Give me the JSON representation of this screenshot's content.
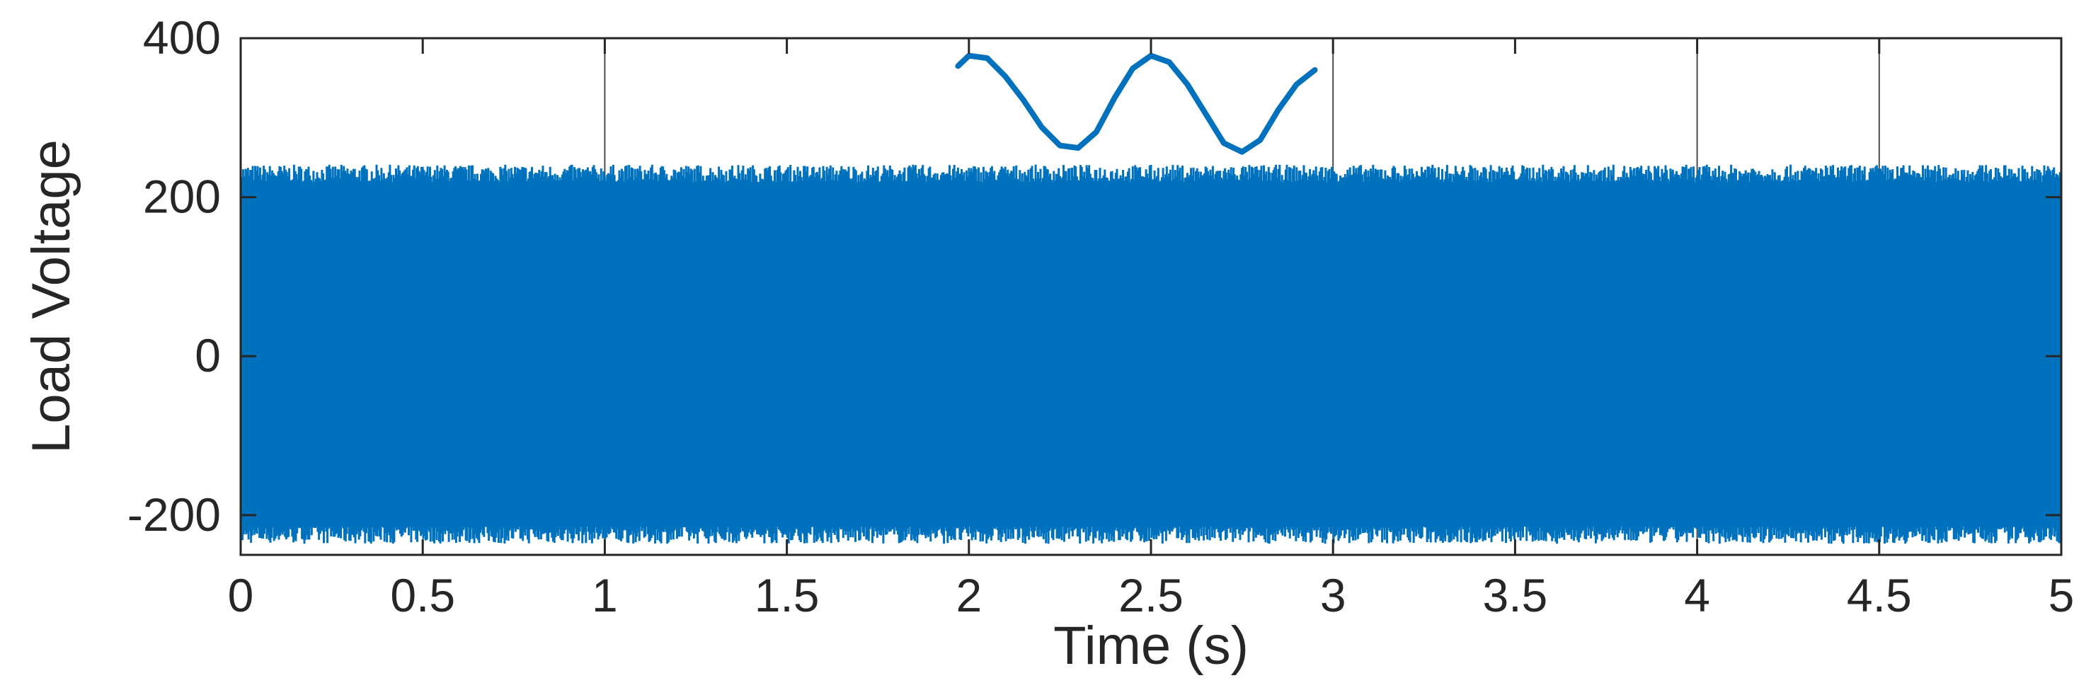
{
  "chart_data": {
    "type": "line",
    "title": "",
    "xlabel": "Time (s)",
    "ylabel": "Load Voltage",
    "xlim": [
      0,
      5
    ],
    "ylim": [
      -250,
      400
    ],
    "xticks": [
      0,
      0.5,
      1,
      1.5,
      2,
      2.5,
      3,
      3.5,
      4,
      4.5,
      5
    ],
    "xtick_labels": [
      "0",
      "0.5",
      "1",
      "1.5",
      "2",
      "2.5",
      "3",
      "3.5",
      "4",
      "4.5",
      "5"
    ],
    "yticks": [
      -200,
      0,
      200,
      400
    ],
    "ytick_labels": [
      "-200",
      "0",
      "200",
      "400"
    ],
    "grid": false,
    "vertical_reference_lines": [
      1,
      3,
      4,
      4.5
    ],
    "series": [
      {
        "color": "#0072BD",
        "description": "dense AC load voltage oscillation",
        "approx_peak": 230,
        "approx_trough": -225
      },
      {
        "color": "#0072BD",
        "description": "inset trace",
        "x": [
          1.97,
          2.0,
          2.05,
          2.1,
          2.15,
          2.2,
          2.25,
          2.3,
          2.35,
          2.4,
          2.45,
          2.5,
          2.55,
          2.6,
          2.65,
          2.7,
          2.75,
          2.8,
          2.85,
          2.9,
          2.95
        ],
        "y": [
          365,
          378,
          375,
          352,
          322,
          288,
          265,
          262,
          282,
          325,
          362,
          378,
          370,
          342,
          305,
          268,
          257,
          272,
          310,
          342,
          360
        ]
      }
    ]
  }
}
